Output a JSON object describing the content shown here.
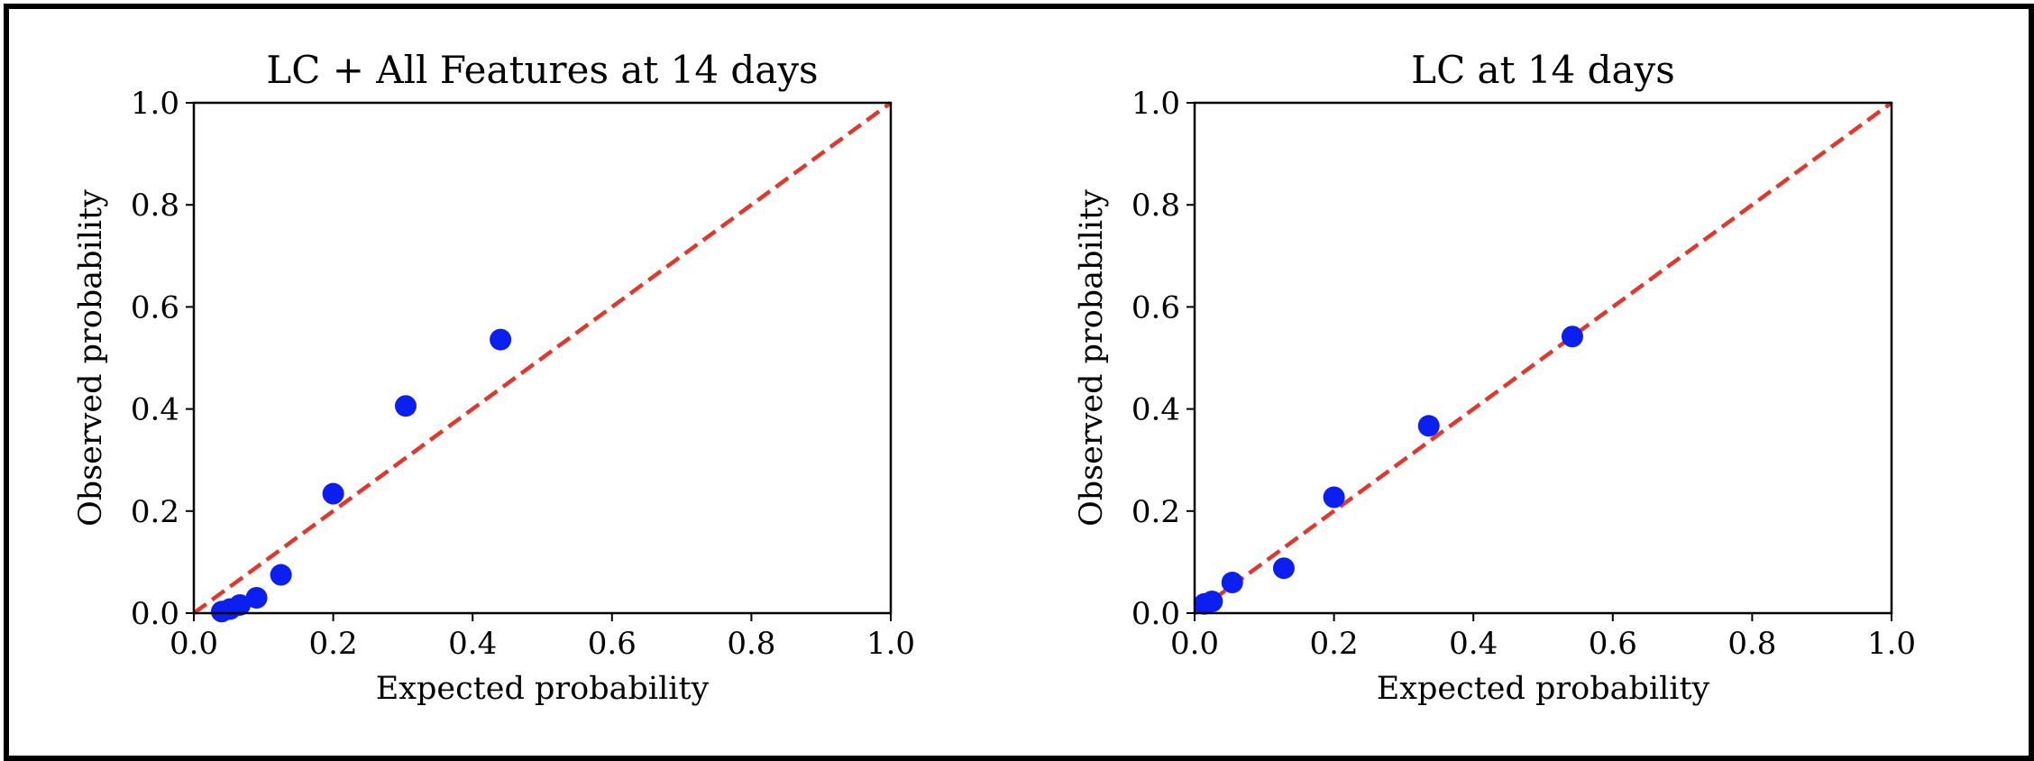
{
  "colors": {
    "points": "#0a1ff0",
    "reference": "#e0382c",
    "axis": "#000000"
  },
  "chart_data": [
    {
      "type": "scatter",
      "title": "LC + All Features at 14 days",
      "xlabel": "Expected probability",
      "ylabel": "Observed probability",
      "xlim": [
        0,
        1
      ],
      "ylim": [
        0,
        1
      ],
      "xticks": [
        "0.0",
        "0.2",
        "0.4",
        "0.6",
        "0.8",
        "1.0"
      ],
      "yticks": [
        "0.0",
        "0.2",
        "0.4",
        "0.6",
        "0.8",
        "1.0"
      ],
      "reference_line": {
        "style": "dashed",
        "from": [
          0,
          0
        ],
        "to": [
          1,
          1
        ]
      },
      "points": [
        {
          "x": 0.04,
          "y": 0.003
        },
        {
          "x": 0.052,
          "y": 0.008
        },
        {
          "x": 0.066,
          "y": 0.016
        },
        {
          "x": 0.09,
          "y": 0.03
        },
        {
          "x": 0.125,
          "y": 0.075
        },
        {
          "x": 0.2,
          "y": 0.234
        },
        {
          "x": 0.304,
          "y": 0.406
        },
        {
          "x": 0.44,
          "y": 0.536
        }
      ]
    },
    {
      "type": "scatter",
      "title": "LC at 14 days",
      "xlabel": "Expected probability",
      "ylabel": "Observed probability",
      "xlim": [
        0,
        1
      ],
      "ylim": [
        0,
        1
      ],
      "xticks": [
        "0.0",
        "0.2",
        "0.4",
        "0.6",
        "0.8",
        "1.0"
      ],
      "yticks": [
        "0.0",
        "0.2",
        "0.4",
        "0.6",
        "0.8",
        "1.0"
      ],
      "reference_line": {
        "style": "dashed",
        "from": [
          0,
          0
        ],
        "to": [
          1,
          1
        ]
      },
      "points": [
        {
          "x": 0.014,
          "y": 0.018
        },
        {
          "x": 0.025,
          "y": 0.023
        },
        {
          "x": 0.054,
          "y": 0.06
        },
        {
          "x": 0.128,
          "y": 0.088
        },
        {
          "x": 0.2,
          "y": 0.227
        },
        {
          "x": 0.336,
          "y": 0.367
        },
        {
          "x": 0.542,
          "y": 0.542
        }
      ]
    }
  ]
}
